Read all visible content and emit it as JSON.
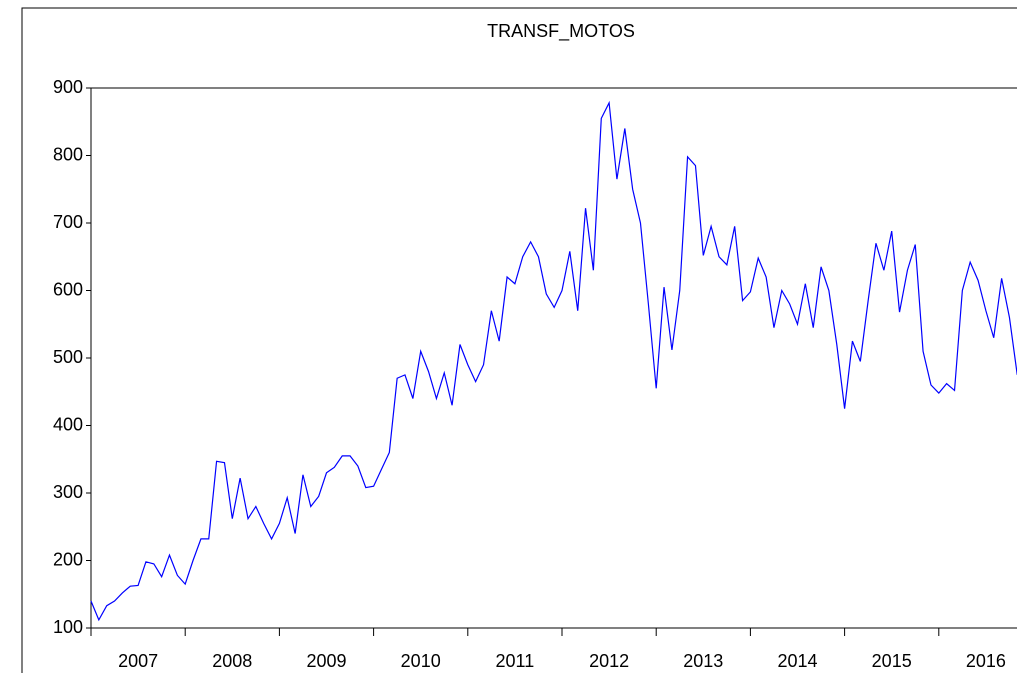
{
  "chart_data": {
    "type": "line",
    "title": "TRANSF_MOTOS",
    "x": [
      2007,
      2007.083,
      2007.167,
      2007.25,
      2007.333,
      2007.417,
      2007.5,
      2007.583,
      2007.667,
      2007.75,
      2007.833,
      2007.917,
      2008,
      2008.083,
      2008.167,
      2008.25,
      2008.333,
      2008.417,
      2008.5,
      2008.583,
      2008.667,
      2008.75,
      2008.833,
      2008.917,
      2009,
      2009.083,
      2009.167,
      2009.25,
      2009.333,
      2009.417,
      2009.5,
      2009.583,
      2009.667,
      2009.75,
      2009.833,
      2009.917,
      2010,
      2010.083,
      2010.167,
      2010.25,
      2010.333,
      2010.417,
      2010.5,
      2010.583,
      2010.667,
      2010.75,
      2010.833,
      2010.917,
      2011,
      2011.083,
      2011.167,
      2011.25,
      2011.333,
      2011.417,
      2011.5,
      2011.583,
      2011.667,
      2011.75,
      2011.833,
      2011.917,
      2012,
      2012.083,
      2012.167,
      2012.25,
      2012.333,
      2012.417,
      2012.5,
      2012.583,
      2012.667,
      2012.75,
      2012.833,
      2012.917,
      2013,
      2013.083,
      2013.167,
      2013.25,
      2013.333,
      2013.417,
      2013.5,
      2013.583,
      2013.667,
      2013.75,
      2013.833,
      2013.917,
      2014,
      2014.083,
      2014.167,
      2014.25,
      2014.333,
      2014.417,
      2014.5,
      2014.583,
      2014.667,
      2014.75,
      2014.833,
      2014.917,
      2015,
      2015.083,
      2015.167,
      2015.25,
      2015.333,
      2015.417,
      2015.5,
      2015.583,
      2015.667,
      2015.75,
      2015.833,
      2015.917,
      2016,
      2016.083,
      2016.167,
      2016.25,
      2016.333,
      2016.417,
      2016.5,
      2016.583,
      2016.667,
      2016.75,
      2016.833
    ],
    "series": [
      {
        "name": "TRANSF_MOTOS",
        "color": "#0000ff",
        "values": [
          140,
          112,
          133,
          140,
          152,
          162,
          163,
          198,
          195,
          176,
          208,
          178,
          165,
          200,
          232,
          232,
          347,
          345,
          262,
          322,
          262,
          280,
          255,
          232,
          255,
          293,
          240,
          327,
          280,
          295,
          330,
          338,
          355,
          355,
          340,
          308,
          310,
          335,
          360,
          470,
          475,
          440,
          510,
          480,
          440,
          478,
          430,
          520,
          490,
          465,
          490,
          570,
          525,
          620,
          610,
          650,
          672,
          650,
          595,
          575,
          600,
          658,
          570,
          722,
          630,
          855,
          878,
          765,
          840,
          750,
          700,
          580,
          455,
          605,
          512,
          600,
          798,
          785,
          652,
          695,
          650,
          638,
          695,
          585,
          598,
          648,
          620,
          545,
          600,
          580,
          550,
          610,
          545,
          635,
          600,
          520,
          425,
          525,
          495,
          585,
          670,
          630,
          688,
          568,
          630,
          668,
          510,
          460,
          448,
          462,
          452,
          600,
          642,
          615,
          570,
          530,
          618,
          560,
          475
        ]
      }
    ],
    "xlim": [
      2007,
      2017
    ],
    "xticks": [
      2007,
      2008,
      2009,
      2010,
      2011,
      2012,
      2013,
      2014,
      2015,
      2016
    ],
    "ylim": [
      100,
      900
    ],
    "yticks": [
      100,
      200,
      300,
      400,
      500,
      600,
      700,
      800,
      900
    ]
  }
}
